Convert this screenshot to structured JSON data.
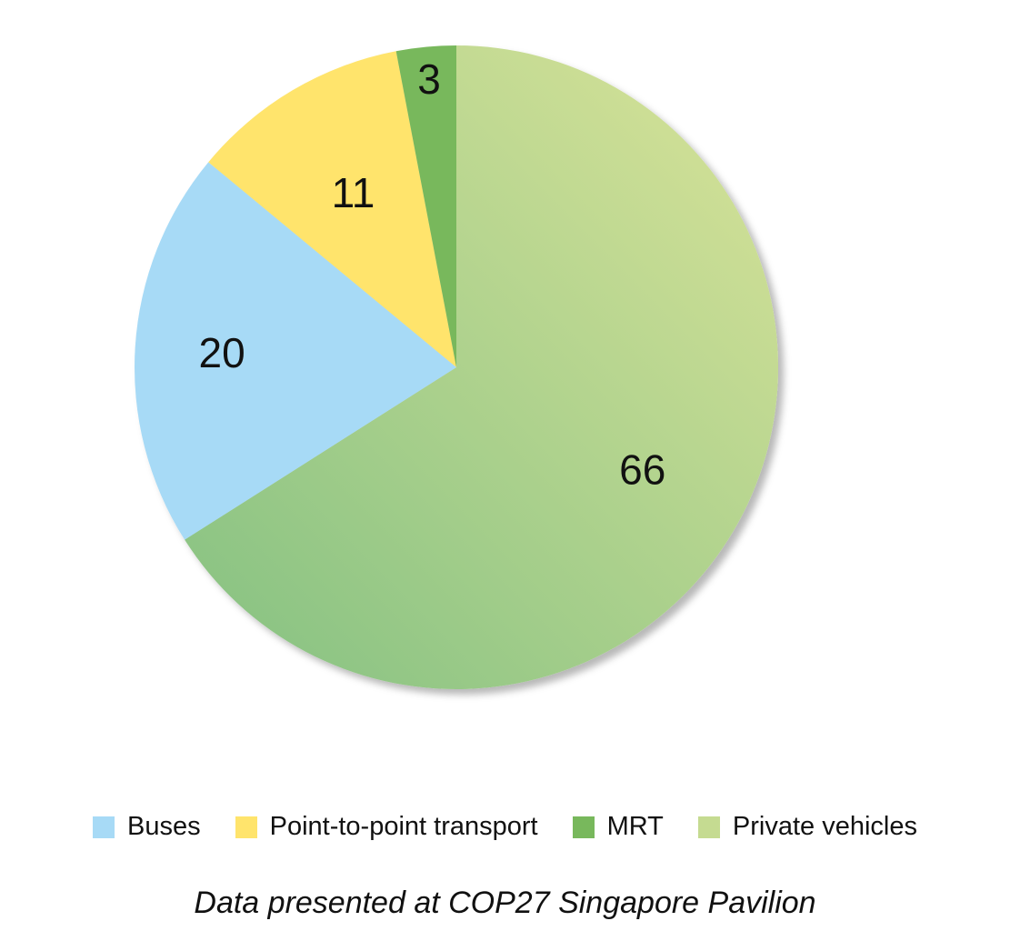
{
  "chart_data": {
    "type": "pie",
    "categories": [
      "Private vehicles",
      "Buses",
      "Point-to-point transport",
      "MRT"
    ],
    "values": [
      66,
      20,
      11,
      3
    ],
    "colors": {
      "Private vehicles": "#c5db91",
      "Buses": "#a7daf6",
      "Point-to-point transport": "#ffe46c",
      "MRT": "#78b85c"
    },
    "gradient_colors": {
      "Private vehicles": [
        "#8cc484",
        "#cfdf96"
      ]
    },
    "start_angle_deg": 0,
    "direction": "clockwise",
    "legend_placement": "bottom",
    "title": "",
    "caption": "Data presented at COP27 Singapore Pavilion"
  },
  "legend": [
    {
      "label": "Buses",
      "color": "#a7daf6"
    },
    {
      "label": "Point-to-point transport",
      "color": "#ffe46c"
    },
    {
      "label": "MRT",
      "color": "#78b85c"
    },
    {
      "label": "Private vehicles",
      "color": "#c5db91"
    }
  ]
}
